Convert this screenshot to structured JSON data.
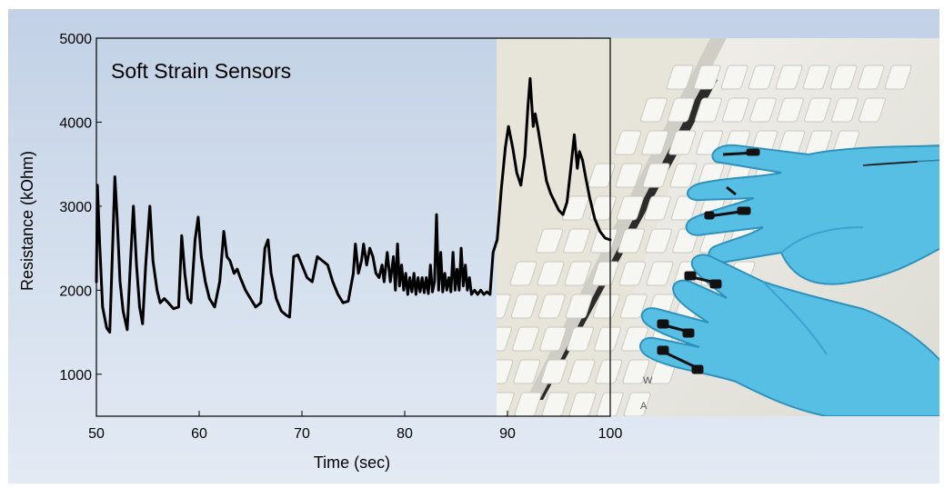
{
  "photo": {
    "description_icon": "gloved-hands-typing-on-keyboard",
    "colors": {
      "glove": "#56bfe3",
      "glove_shadow": "#2f92bd",
      "keyboard": "#ecebe4",
      "keyboard_shadow": "#c9c8c0",
      "key": "#f6f6f2",
      "bezel": "#2b2b2b"
    }
  },
  "chart_data": {
    "type": "line",
    "title": "Soft Strain Sensors",
    "xlabel": "Time (sec)",
    "ylabel": "Resistance (kOhm)",
    "xlim": [
      50,
      100
    ],
    "ylim": [
      500,
      5000
    ],
    "xticks": [
      50,
      60,
      70,
      80,
      90,
      100
    ],
    "yticks": [
      1000,
      2000,
      3000,
      4000,
      5000
    ],
    "grid": false,
    "line_color": "#000000",
    "series": [
      {
        "values": [
          [
            50.0,
            2100
          ],
          [
            50.1,
            3250
          ],
          [
            50.3,
            2600
          ],
          [
            50.6,
            1800
          ],
          [
            51.0,
            1550
          ],
          [
            51.3,
            1500
          ],
          [
            51.6,
            2600
          ],
          [
            51.8,
            3350
          ],
          [
            52.0,
            2900
          ],
          [
            52.3,
            2100
          ],
          [
            52.6,
            1750
          ],
          [
            53.0,
            1530
          ],
          [
            53.3,
            2300
          ],
          [
            53.6,
            3000
          ],
          [
            53.9,
            2300
          ],
          [
            54.2,
            1800
          ],
          [
            54.5,
            1600
          ],
          [
            54.8,
            2300
          ],
          [
            55.2,
            3000
          ],
          [
            55.5,
            2350
          ],
          [
            55.9,
            2000
          ],
          [
            56.2,
            1850
          ],
          [
            56.6,
            1900
          ],
          [
            57.0,
            1850
          ],
          [
            57.5,
            1780
          ],
          [
            58.0,
            1800
          ],
          [
            58.3,
            2650
          ],
          [
            58.6,
            2200
          ],
          [
            58.9,
            1900
          ],
          [
            59.2,
            1850
          ],
          [
            59.6,
            2600
          ],
          [
            59.9,
            2870
          ],
          [
            60.2,
            2400
          ],
          [
            60.6,
            2100
          ],
          [
            61.0,
            1900
          ],
          [
            61.5,
            1800
          ],
          [
            62.0,
            2100
          ],
          [
            62.4,
            2700
          ],
          [
            62.7,
            2400
          ],
          [
            63.0,
            2350
          ],
          [
            63.4,
            2200
          ],
          [
            63.7,
            2250
          ],
          [
            64.0,
            2150
          ],
          [
            64.5,
            2000
          ],
          [
            65.0,
            1900
          ],
          [
            65.5,
            1800
          ],
          [
            66.0,
            1850
          ],
          [
            66.4,
            2500
          ],
          [
            66.7,
            2600
          ],
          [
            67.0,
            2200
          ],
          [
            67.5,
            1900
          ],
          [
            68.0,
            1750
          ],
          [
            68.5,
            1700
          ],
          [
            68.8,
            1680
          ],
          [
            69.2,
            2400
          ],
          [
            69.6,
            2420
          ],
          [
            70.0,
            2300
          ],
          [
            70.5,
            2150
          ],
          [
            71.0,
            2100
          ],
          [
            71.5,
            2400
          ],
          [
            72.0,
            2350
          ],
          [
            72.5,
            2300
          ],
          [
            73.0,
            2100
          ],
          [
            73.5,
            1950
          ],
          [
            74.0,
            1850
          ],
          [
            74.5,
            1870
          ],
          [
            75.0,
            2200
          ],
          [
            75.2,
            2550
          ],
          [
            75.5,
            2200
          ],
          [
            75.8,
            2350
          ],
          [
            76.0,
            2550
          ],
          [
            76.3,
            2300
          ],
          [
            76.6,
            2500
          ],
          [
            76.9,
            2400
          ],
          [
            77.2,
            2200
          ],
          [
            77.5,
            2150
          ],
          [
            77.8,
            2300
          ],
          [
            78.0,
            2100
          ],
          [
            78.3,
            2450
          ],
          [
            78.6,
            2100
          ],
          [
            78.9,
            2400
          ],
          [
            79.1,
            2000
          ],
          [
            79.3,
            2550
          ],
          [
            79.5,
            2050
          ],
          [
            79.7,
            2300
          ],
          [
            79.9,
            2000
          ],
          [
            80.1,
            2200
          ],
          [
            80.3,
            1950
          ],
          [
            80.5,
            2150
          ],
          [
            80.7,
            1980
          ],
          [
            80.9,
            2200
          ],
          [
            81.1,
            1950
          ],
          [
            81.3,
            2150
          ],
          [
            81.5,
            1980
          ],
          [
            81.7,
            2150
          ],
          [
            81.9,
            1970
          ],
          [
            82.1,
            2150
          ],
          [
            82.3,
            1960
          ],
          [
            82.5,
            2300
          ],
          [
            82.7,
            1980
          ],
          [
            82.9,
            2100
          ],
          [
            83.1,
            2900
          ],
          [
            83.3,
            2000
          ],
          [
            83.5,
            2450
          ],
          [
            83.7,
            1980
          ],
          [
            83.9,
            2200
          ],
          [
            84.1,
            2000
          ],
          [
            84.3,
            2150
          ],
          [
            84.5,
            1980
          ],
          [
            84.7,
            2450
          ],
          [
            84.9,
            2000
          ],
          [
            85.1,
            2250
          ],
          [
            85.3,
            2000
          ],
          [
            85.5,
            2500
          ],
          [
            85.7,
            2050
          ],
          [
            85.9,
            2300
          ],
          [
            86.1,
            2000
          ],
          [
            86.3,
            2150
          ],
          [
            86.5,
            1950
          ],
          [
            86.8,
            2000
          ],
          [
            87.1,
            1950
          ],
          [
            87.4,
            2000
          ],
          [
            87.7,
            1950
          ],
          [
            88.0,
            1980
          ],
          [
            88.3,
            1950
          ],
          [
            88.6,
            2450
          ],
          [
            89.0,
            2600
          ],
          [
            89.4,
            3200
          ],
          [
            89.8,
            3700
          ],
          [
            90.1,
            3950
          ],
          [
            90.5,
            3700
          ],
          [
            90.9,
            3400
          ],
          [
            91.3,
            3250
          ],
          [
            91.7,
            3600
          ],
          [
            92.0,
            4200
          ],
          [
            92.2,
            4520
          ],
          [
            92.5,
            3950
          ],
          [
            92.7,
            4100
          ],
          [
            93.0,
            3900
          ],
          [
            93.4,
            3600
          ],
          [
            93.8,
            3300
          ],
          [
            94.2,
            3150
          ],
          [
            94.6,
            3050
          ],
          [
            95.0,
            2950
          ],
          [
            95.4,
            2900
          ],
          [
            95.8,
            3050
          ],
          [
            96.2,
            3500
          ],
          [
            96.5,
            3850
          ],
          [
            96.8,
            3450
          ],
          [
            97.0,
            3650
          ],
          [
            97.3,
            3550
          ],
          [
            97.6,
            3350
          ],
          [
            98.0,
            3100
          ],
          [
            98.5,
            2850
          ],
          [
            99.0,
            2700
          ],
          [
            99.5,
            2620
          ],
          [
            100.0,
            2600
          ]
        ]
      }
    ]
  }
}
